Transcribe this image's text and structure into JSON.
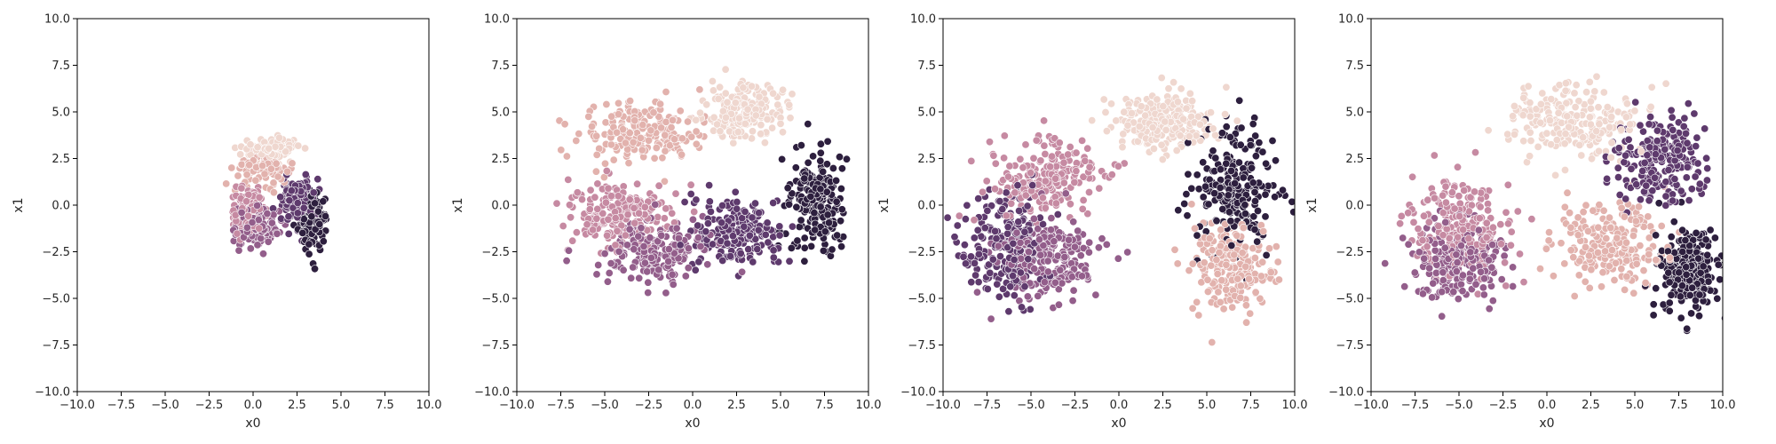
{
  "figure": {
    "background": "#ffffff"
  },
  "chart_data": [
    {
      "type": "scatter",
      "panel": 1,
      "xlabel": "x0",
      "ylabel": "x1",
      "xlim": [
        -10,
        10
      ],
      "ylim": [
        -10,
        10
      ],
      "xticks": [
        "−10.0",
        "−7.5",
        "−5.0",
        "−2.5",
        "0.0",
        "2.5",
        "5.0",
        "7.5",
        "10.0"
      ],
      "yticks": [
        "−10.0",
        "−7.5",
        "−5.0",
        "−2.5",
        "0.0",
        "2.5",
        "5.0",
        "7.5",
        "10.0"
      ],
      "grid": false,
      "legend": "none",
      "palette": [
        "#efd7cf",
        "#e2b2ad",
        "#c68aa2",
        "#935e8b",
        "#5e3a6d",
        "#2d1f3e"
      ],
      "points_per_cluster": 120,
      "clusters": [
        {
          "center": [
            1.0,
            3.0
          ],
          "spread": [
            1.4,
            0.5
          ],
          "color_index": 0
        },
        {
          "center": [
            0.5,
            2.0
          ],
          "spread": [
            1.3,
            0.7
          ],
          "color_index": 1
        },
        {
          "center": [
            -0.3,
            -0.3
          ],
          "spread": [
            0.8,
            1.0
          ],
          "color_index": 2
        },
        {
          "center": [
            0.3,
            -1.2
          ],
          "spread": [
            1.0,
            0.9
          ],
          "color_index": 3
        },
        {
          "center": [
            2.5,
            0.2
          ],
          "spread": [
            0.9,
            1.2
          ],
          "color_index": 4
        },
        {
          "center": [
            3.4,
            -0.8
          ],
          "spread": [
            0.7,
            1.3
          ],
          "color_index": 5
        }
      ]
    },
    {
      "type": "scatter",
      "panel": 2,
      "xlabel": "x0",
      "ylabel": "x1",
      "xlim": [
        -10,
        10
      ],
      "ylim": [
        -10,
        10
      ],
      "xticks": [
        "−10.0",
        "−7.5",
        "−5.0",
        "−2.5",
        "0.0",
        "2.5",
        "5.0",
        "7.5",
        "10.0"
      ],
      "yticks": [
        "−10.0",
        "−7.5",
        "−5.0",
        "−2.5",
        "0.0",
        "2.5",
        "5.0",
        "7.5",
        "10.0"
      ],
      "grid": false,
      "legend": "none",
      "palette": [
        "#efd7cf",
        "#e2b2ad",
        "#c68aa2",
        "#935e8b",
        "#5e3a6d",
        "#2d1f3e"
      ],
      "points_per_cluster": 200,
      "clusters": [
        {
          "center": [
            3.0,
            5.0
          ],
          "spread": [
            1.8,
            1.2
          ],
          "color_index": 0
        },
        {
          "center": [
            -3.0,
            4.0
          ],
          "spread": [
            2.8,
            1.5
          ],
          "color_index": 1
        },
        {
          "center": [
            -4.0,
            -0.5
          ],
          "spread": [
            2.5,
            1.5
          ],
          "color_index": 2
        },
        {
          "center": [
            -2.0,
            -2.5
          ],
          "spread": [
            2.5,
            1.3
          ],
          "color_index": 3
        },
        {
          "center": [
            2.5,
            -1.5
          ],
          "spread": [
            2.0,
            1.5
          ],
          "color_index": 4
        },
        {
          "center": [
            7.0,
            0.0
          ],
          "spread": [
            1.3,
            2.5
          ],
          "color_index": 5
        }
      ]
    },
    {
      "type": "scatter",
      "panel": 3,
      "xlabel": "x0",
      "ylabel": "x1",
      "xlim": [
        -10,
        10
      ],
      "ylim": [
        -10,
        10
      ],
      "xticks": [
        "−10.0",
        "−7.5",
        "−5.0",
        "−2.5",
        "0.0",
        "2.5",
        "5.0",
        "7.5",
        "10.0"
      ],
      "yticks": [
        "−10.0",
        "−7.5",
        "−5.0",
        "−2.5",
        "0.0",
        "2.5",
        "5.0",
        "7.5",
        "10.0"
      ],
      "grid": false,
      "legend": "none",
      "palette": [
        "#efd7cf",
        "#e2b2ad",
        "#c68aa2",
        "#935e8b",
        "#5e3a6d",
        "#2d1f3e"
      ],
      "points_per_cluster": 220,
      "clusters": [
        {
          "center": [
            2.5,
            4.5
          ],
          "spread": [
            2.5,
            1.3
          ],
          "color_index": 0
        },
        {
          "center": [
            6.5,
            -3.5
          ],
          "spread": [
            2.0,
            2.2
          ],
          "color_index": 1
        },
        {
          "center": [
            -4.0,
            1.5
          ],
          "spread": [
            2.5,
            1.8
          ],
          "color_index": 2
        },
        {
          "center": [
            -4.0,
            -3.0
          ],
          "spread": [
            2.5,
            1.8
          ],
          "color_index": 3
        },
        {
          "center": [
            -6.5,
            -2.0
          ],
          "spread": [
            2.0,
            2.5
          ],
          "color_index": 4
        },
        {
          "center": [
            6.5,
            1.0
          ],
          "spread": [
            2.0,
            3.0
          ],
          "color_index": 5
        }
      ]
    },
    {
      "type": "scatter",
      "panel": 4,
      "xlabel": "x0",
      "ylabel": "x1",
      "xlim": [
        -10,
        10
      ],
      "ylim": [
        -10,
        10
      ],
      "xticks": [
        "−10.0",
        "−7.5",
        "−5.0",
        "−2.5",
        "0.0",
        "2.5",
        "5.0",
        "7.5",
        "10.0"
      ],
      "yticks": [
        "−10.0",
        "−7.5",
        "−5.0",
        "−2.5",
        "0.0",
        "2.5",
        "5.0",
        "7.5",
        "10.0"
      ],
      "grid": false,
      "legend": "none",
      "palette": [
        "#efd7cf",
        "#e2b2ad",
        "#c68aa2",
        "#935e8b",
        "#5e3a6d",
        "#2d1f3e"
      ],
      "points_per_cluster": 220,
      "clusters": [
        {
          "center": [
            1.5,
            4.5
          ],
          "spread": [
            3.0,
            1.8
          ],
          "color_index": 0
        },
        {
          "center": [
            3.5,
            -2.0
          ],
          "spread": [
            2.5,
            1.8
          ],
          "color_index": 1
        },
        {
          "center": [
            -5.0,
            -1.0
          ],
          "spread": [
            2.5,
            2.2
          ],
          "color_index": 2
        },
        {
          "center": [
            -5.0,
            -3.0
          ],
          "spread": [
            2.2,
            1.8
          ],
          "color_index": 3
        },
        {
          "center": [
            6.5,
            2.5
          ],
          "spread": [
            2.0,
            2.0
          ],
          "color_index": 4
        },
        {
          "center": [
            8.0,
            -3.5
          ],
          "spread": [
            1.3,
            2.0
          ],
          "color_index": 5
        }
      ]
    }
  ]
}
